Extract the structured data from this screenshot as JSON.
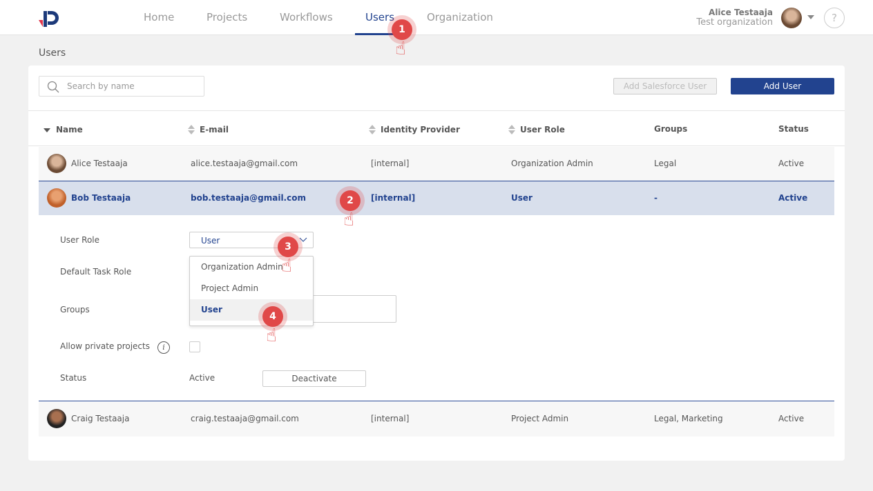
{
  "nav": {
    "items": [
      "Home",
      "Projects",
      "Workflows",
      "Users",
      "Organization"
    ],
    "active": "Users"
  },
  "account": {
    "name": "Alice Testaaja",
    "org": "Test organization",
    "help": "?"
  },
  "page": {
    "title": "Users"
  },
  "toolbar": {
    "search_placeholder": "Search by name",
    "add_salesforce": "Add Salesforce User",
    "add_user": "Add User"
  },
  "columns": [
    "Name",
    "E-mail",
    "Identity Provider",
    "User Role",
    "Groups",
    "Status"
  ],
  "rows": [
    {
      "name": "Alice Testaaja",
      "email": "alice.testaaja@gmail.com",
      "idp": "[internal]",
      "role": "Organization Admin",
      "groups": "Legal",
      "status": "Active"
    },
    {
      "name": "Bob Testaaja",
      "email": "bob.testaaja@gmail.com",
      "idp": "[internal]",
      "role": "User",
      "groups": "-",
      "status": "Active"
    },
    {
      "name": "Craig Testaaja",
      "email": "craig.testaaja@gmail.com",
      "idp": "[internal]",
      "role": "Project Admin",
      "groups": "Legal, Marketing",
      "status": "Active"
    }
  ],
  "detail": {
    "user_role_label": "User Role",
    "user_role_value": "User",
    "default_task_role_label": "Default Task Role",
    "groups_label": "Groups",
    "private_label": "Allow private projects",
    "status_label": "Status",
    "status_value": "Active",
    "deactivate": "Deactivate"
  },
  "role_options": [
    "Organization Admin",
    "Project Admin",
    "User"
  ],
  "markers": [
    "1",
    "2",
    "3",
    "4"
  ],
  "colors": {
    "accent": "#22438f",
    "marker": "#e04848"
  }
}
